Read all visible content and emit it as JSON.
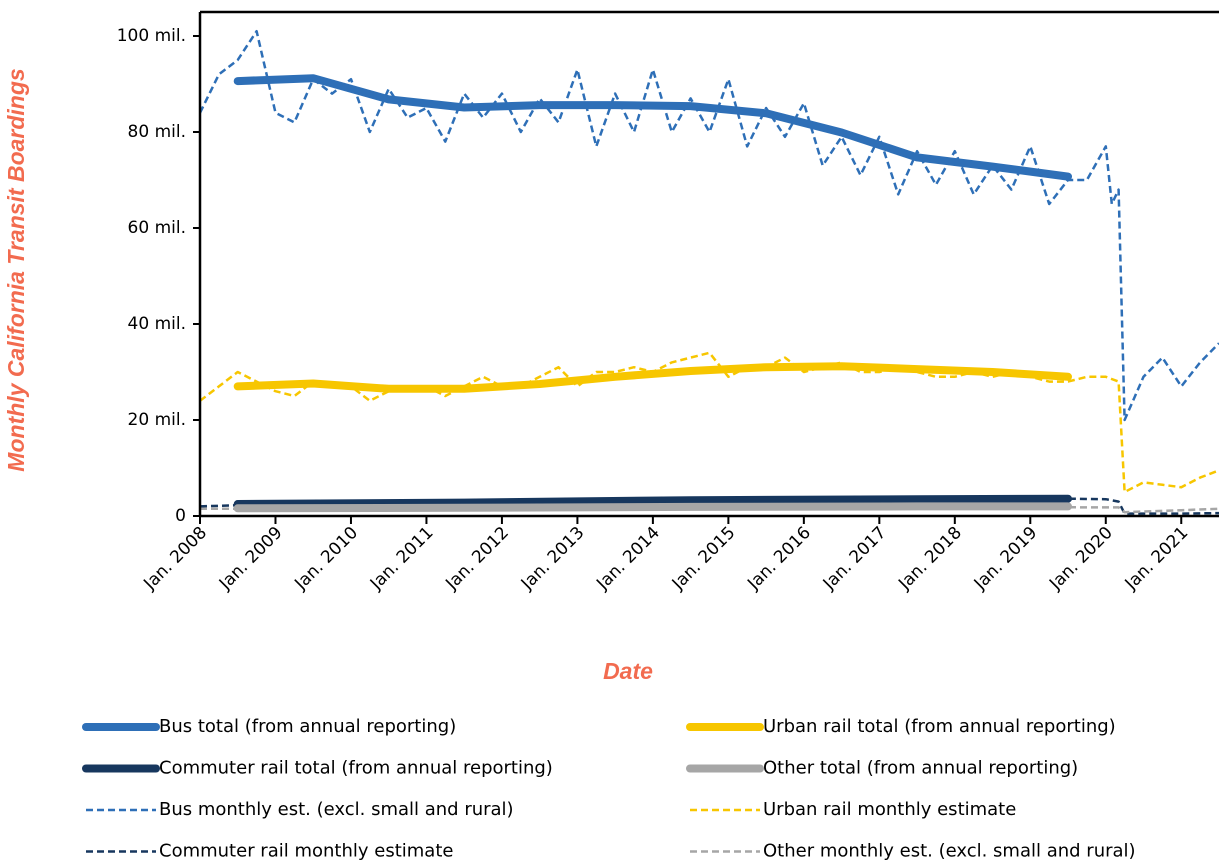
{
  "chart_data": {
    "type": "line",
    "x_label": "Date",
    "y_label": "Monthly California Transit Boardings",
    "xlim": [
      2008,
      2021.5
    ],
    "ylim": [
      0,
      105
    ],
    "xticks": [
      {
        "value": 2008,
        "label": "Jan. 2008"
      },
      {
        "value": 2009,
        "label": "Jan. 2009"
      },
      {
        "value": 2010,
        "label": "Jan. 2010"
      },
      {
        "value": 2011,
        "label": "Jan. 2011"
      },
      {
        "value": 2012,
        "label": "Jan. 2012"
      },
      {
        "value": 2013,
        "label": "Jan. 2013"
      },
      {
        "value": 2014,
        "label": "Jan. 2014"
      },
      {
        "value": 2015,
        "label": "Jan. 2015"
      },
      {
        "value": 2016,
        "label": "Jan. 2016"
      },
      {
        "value": 2017,
        "label": "Jan. 2017"
      },
      {
        "value": 2018,
        "label": "Jan. 2018"
      },
      {
        "value": 2019,
        "label": "Jan. 2019"
      },
      {
        "value": 2020,
        "label": "Jan. 2020"
      },
      {
        "value": 2021,
        "label": "Jan. 2021"
      }
    ],
    "yticks": [
      0,
      {
        "value": 20,
        "label": "20 mil."
      },
      {
        "value": 40,
        "label": "40 mil."
      },
      {
        "value": 60,
        "label": "60 mil."
      },
      {
        "value": 80,
        "label": "80 mil."
      },
      {
        "value": 100,
        "label": "100 mil."
      }
    ],
    "series": [
      {
        "name": "Bus total (from annual reporting)",
        "color": "#2e6fb7",
        "line_style": "solid",
        "x": [
          2008.5,
          2009.5,
          2010.5,
          2011.5,
          2012.5,
          2013.5,
          2014.5,
          2015.5,
          2016.5,
          2017.5,
          2018.5,
          2019.5
        ],
        "values": [
          90.6,
          91.2,
          86.8,
          85.1,
          85.6,
          85.6,
          85.4,
          83.9,
          79.9,
          74.7,
          72.8,
          70.7
        ]
      },
      {
        "name": "Urban rail total (from annual reporting)",
        "color": "#f7c600",
        "line_style": "solid",
        "x": [
          2008.5,
          2009.5,
          2010.5,
          2011.5,
          2012.5,
          2013.5,
          2014.5,
          2015.5,
          2016.5,
          2017.5,
          2018.5,
          2019.5
        ],
        "values": [
          27,
          27.6,
          26.5,
          26.5,
          27.5,
          29,
          30.2,
          31,
          31.2,
          30.6,
          30,
          29
        ]
      },
      {
        "name": "Commuter rail total (from annual reporting)",
        "color": "#17375e",
        "line_style": "solid",
        "x": [
          2008.5,
          2011.5,
          2014.5,
          2017.5,
          2019.5
        ],
        "values": [
          2.5,
          2.8,
          3.3,
          3.5,
          3.6
        ]
      },
      {
        "name": "Other total (from annual reporting)",
        "color": "#a6a6a6",
        "line_style": "solid",
        "x": [
          2008.5,
          2011.5,
          2014.5,
          2017.5,
          2019.5
        ],
        "values": [
          1.6,
          1.7,
          1.9,
          2,
          2
        ]
      },
      {
        "name": "Bus monthly est. (excl. small and rural)",
        "color": "#2e6fb7",
        "line_style": "dashed",
        "x": [
          2008,
          2008.25,
          2008.5,
          2008.75,
          2009,
          2009.25,
          2009.5,
          2009.75,
          2010,
          2010.25,
          2010.5,
          2010.75,
          2011,
          2011.25,
          2011.5,
          2011.75,
          2012,
          2012.25,
          2012.5,
          2012.75,
          2013,
          2013.25,
          2013.5,
          2013.75,
          2014,
          2014.25,
          2014.5,
          2014.75,
          2015,
          2015.25,
          2015.5,
          2015.75,
          2016,
          2016.25,
          2016.5,
          2016.75,
          2017,
          2017.25,
          2017.5,
          2017.75,
          2018,
          2018.25,
          2018.5,
          2018.75,
          2019,
          2019.25,
          2019.5,
          2019.75,
          2020,
          2020.08,
          2020.17,
          2020.25,
          2020.5,
          2020.75,
          2021,
          2021.25,
          2021.5
        ],
        "values": [
          84,
          92,
          95,
          101,
          84,
          82,
          91,
          88,
          91,
          80,
          89,
          83,
          85,
          78,
          88,
          83,
          88,
          80,
          87,
          82,
          93,
          77,
          88,
          80,
          93,
          80,
          87,
          80,
          91,
          77,
          85,
          79,
          86,
          73,
          79,
          71,
          79,
          67,
          76,
          69,
          76,
          67,
          73,
          68,
          77,
          65,
          70,
          70,
          77,
          65,
          68,
          20,
          29,
          33,
          27,
          32,
          36
        ]
      },
      {
        "name": "Urban rail monthly estimate",
        "color": "#f7c600",
        "line_style": "dashed",
        "x": [
          2008,
          2008.25,
          2008.5,
          2008.75,
          2009,
          2009.25,
          2009.5,
          2009.75,
          2010,
          2010.25,
          2010.5,
          2010.75,
          2011,
          2011.25,
          2011.5,
          2011.75,
          2012,
          2012.25,
          2012.5,
          2012.75,
          2013,
          2013.25,
          2013.5,
          2013.75,
          2014,
          2014.25,
          2014.5,
          2014.75,
          2015,
          2015.25,
          2015.5,
          2015.75,
          2016,
          2016.25,
          2016.5,
          2016.75,
          2017,
          2017.25,
          2017.5,
          2017.75,
          2018,
          2018.25,
          2018.5,
          2018.75,
          2019,
          2019.25,
          2019.5,
          2019.75,
          2020,
          2020.17,
          2020.25,
          2020.5,
          2020.75,
          2021,
          2021.25,
          2021.5
        ],
        "values": [
          24,
          27,
          30,
          28,
          26,
          25,
          28,
          27,
          27,
          24,
          26,
          26,
          27,
          25,
          27,
          29,
          27,
          27,
          29,
          31,
          27,
          30,
          30,
          31,
          30,
          32,
          33,
          34,
          29,
          31,
          31,
          33,
          30,
          31,
          32,
          30,
          30,
          31,
          30,
          29,
          29,
          30,
          29,
          30,
          29,
          28,
          28,
          29,
          29,
          28,
          5,
          7,
          6.5,
          6,
          8,
          9.5
        ]
      },
      {
        "name": "Commuter rail monthly estimate",
        "color": "#17375e",
        "line_style": "dashed",
        "x": [
          2008,
          2009,
          2010,
          2011,
          2012,
          2013,
          2014,
          2015,
          2016,
          2017,
          2018,
          2019,
          2020,
          2020.17,
          2020.25,
          2021,
          2021.5
        ],
        "values": [
          2,
          2.5,
          2.5,
          2.8,
          3,
          3.3,
          3.5,
          3.5,
          3.7,
          3.6,
          3.6,
          3.7,
          3.5,
          3,
          0.5,
          0.5,
          0.6
        ]
      },
      {
        "name": "Other monthly est. (excl. small and rural)",
        "color": "#a6a6a6",
        "line_style": "dashed",
        "x": [
          2008,
          2010,
          2012,
          2014,
          2016,
          2018,
          2020,
          2020.17,
          2020.25,
          2021,
          2021.5
        ],
        "values": [
          1.5,
          1.6,
          1.7,
          1.8,
          1.9,
          1.9,
          1.8,
          1.8,
          0.8,
          1.2,
          1.5
        ]
      }
    ]
  }
}
